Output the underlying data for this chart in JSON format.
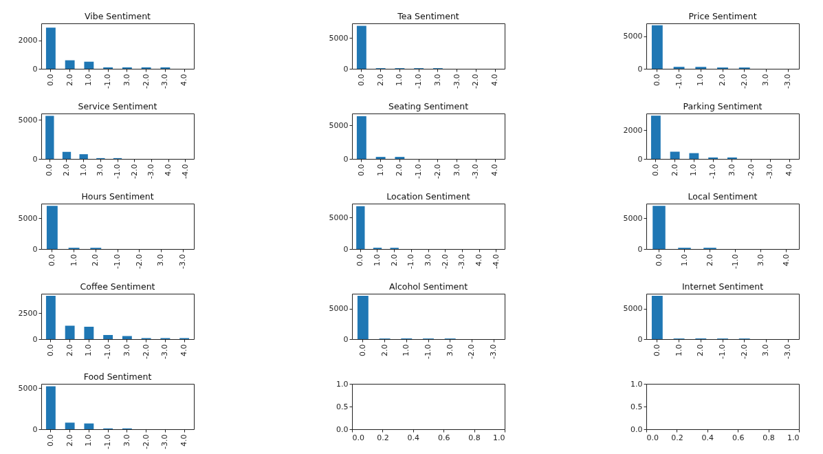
{
  "chart_data": [
    {
      "type": "bar",
      "title": "Vibe Sentiment",
      "categories": [
        "0.0",
        "2.0",
        "1.0",
        "-1.0",
        "3.0",
        "-2.0",
        "-3.0",
        "4.0"
      ],
      "values": [
        2900,
        600,
        500,
        100,
        100,
        100,
        100,
        0
      ],
      "color": "#1f77b4",
      "ylim": [
        0,
        3200
      ],
      "yticks": [
        0,
        2000
      ]
    },
    {
      "type": "bar",
      "title": "Tea Sentiment",
      "categories": [
        "0.0",
        "2.0",
        "1.0",
        "-1.0",
        "3.0",
        "-3.0",
        "-2.0",
        "4.0"
      ],
      "values": [
        7000,
        100,
        100,
        100,
        100,
        0,
        0,
        0
      ],
      "color": "#1f77b4",
      "ylim": [
        0,
        7400
      ],
      "yticks": [
        0,
        5000
      ]
    },
    {
      "type": "bar",
      "title": "Price Sentiment",
      "categories": [
        "0.0",
        "-1.0",
        "1.0",
        "2.0",
        "-2.0",
        "3.0",
        "-3.0"
      ],
      "values": [
        6700,
        300,
        300,
        200,
        200,
        0,
        0
      ],
      "color": "#1f77b4",
      "ylim": [
        0,
        7000
      ],
      "yticks": [
        0,
        5000
      ]
    },
    {
      "type": "bar",
      "title": "Service Sentiment",
      "categories": [
        "0.0",
        "2.0",
        "1.0",
        "3.0",
        "-1.0",
        "-2.0",
        "-3.0",
        "4.0",
        "-4.0"
      ],
      "values": [
        5500,
        900,
        600,
        100,
        100,
        0,
        0,
        0,
        0
      ],
      "color": "#1f77b4",
      "ylim": [
        0,
        5800
      ],
      "yticks": [
        0,
        5000
      ]
    },
    {
      "type": "bar",
      "title": "Seating Sentiment",
      "categories": [
        "0.0",
        "1.0",
        "2.0",
        "-1.0",
        "-2.0",
        "3.0",
        "-3.0",
        "4.0"
      ],
      "values": [
        6400,
        300,
        300,
        0,
        0,
        0,
        0,
        0
      ],
      "color": "#1f77b4",
      "ylim": [
        0,
        6800
      ],
      "yticks": [
        0,
        5000
      ]
    },
    {
      "type": "bar",
      "title": "Parking Sentiment",
      "categories": [
        "0.0",
        "2.0",
        "1.0",
        "-1.0",
        "3.0",
        "-2.0",
        "-3.0",
        "4.0"
      ],
      "values": [
        3000,
        500,
        400,
        100,
        100,
        0,
        0,
        0
      ],
      "color": "#1f77b4",
      "ylim": [
        0,
        3150
      ],
      "yticks": [
        0,
        2000
      ]
    },
    {
      "type": "bar",
      "title": "Hours Sentiment",
      "categories": [
        "0.0",
        "1.0",
        "2.0",
        "-1.0",
        "-2.0",
        "3.0",
        "-3.0"
      ],
      "values": [
        7000,
        200,
        200,
        0,
        0,
        0,
        0
      ],
      "color": "#1f77b4",
      "ylim": [
        0,
        7350
      ],
      "yticks": [
        0,
        5000
      ]
    },
    {
      "type": "bar",
      "title": "Location Sentiment",
      "categories": [
        "0.0",
        "1.0",
        "2.0",
        "-1.0",
        "3.0",
        "-2.0",
        "-3.0",
        "4.0",
        "-4.0"
      ],
      "values": [
        6800,
        200,
        200,
        0,
        0,
        0,
        0,
        0,
        0
      ],
      "color": "#1f77b4",
      "ylim": [
        0,
        7200
      ],
      "yticks": [
        0,
        5000
      ]
    },
    {
      "type": "bar",
      "title": "Local Sentiment",
      "categories": [
        "0.0",
        "1.0",
        "2.0",
        "-1.0",
        "3.0",
        "4.0"
      ],
      "values": [
        7000,
        200,
        200,
        0,
        0,
        0
      ],
      "color": "#1f77b4",
      "ylim": [
        0,
        7350
      ],
      "yticks": [
        0,
        5000
      ]
    },
    {
      "type": "bar",
      "title": "Coffee Sentiment",
      "categories": [
        "0.0",
        "2.0",
        "1.0",
        "-1.0",
        "3.0",
        "-2.0",
        "-3.0",
        "4.0"
      ],
      "values": [
        4200,
        1300,
        1200,
        400,
        300,
        100,
        100,
        100
      ],
      "color": "#1f77b4",
      "ylim": [
        0,
        4400
      ],
      "yticks": [
        0,
        2500
      ]
    },
    {
      "type": "bar",
      "title": "Alcohol Sentiment",
      "categories": [
        "0.0",
        "2.0",
        "1.0",
        "-1.0",
        "3.0",
        "-2.0",
        "-3.0"
      ],
      "values": [
        7100,
        100,
        100,
        100,
        100,
        0,
        0
      ],
      "color": "#1f77b4",
      "ylim": [
        0,
        7450
      ],
      "yticks": [
        0,
        5000
      ]
    },
    {
      "type": "bar",
      "title": "Internet Sentiment",
      "categories": [
        "0.0",
        "1.0",
        "2.0",
        "-1.0",
        "-2.0",
        "3.0",
        "-3.0"
      ],
      "values": [
        7100,
        100,
        100,
        100,
        100,
        0,
        0
      ],
      "color": "#1f77b4",
      "ylim": [
        0,
        7450
      ],
      "yticks": [
        0,
        5000
      ]
    },
    {
      "type": "bar",
      "title": "Food Sentiment",
      "categories": [
        "0.0",
        "2.0",
        "1.0",
        "-1.0",
        "3.0",
        "-2.0",
        "-3.0",
        "4.0"
      ],
      "values": [
        5200,
        800,
        700,
        100,
        100,
        0,
        0,
        0
      ],
      "color": "#1f77b4",
      "ylim": [
        0,
        5500
      ],
      "yticks": [
        0,
        5000
      ]
    },
    {
      "type": "scatter",
      "xlim": [
        0,
        1
      ],
      "ylim": [
        0,
        1
      ],
      "xticks": [
        {
          "value": 0,
          "label": "0.0"
        },
        {
          "value": 0.2,
          "label": "0.2"
        },
        {
          "value": 0.4,
          "label": "0.4"
        },
        {
          "value": 0.6,
          "label": "0.6"
        },
        {
          "value": 0.8,
          "label": "0.8"
        },
        {
          "value": 1,
          "label": "1.0"
        }
      ],
      "yticks": [
        {
          "value": 0,
          "label": "0.0"
        },
        {
          "value": 0.5,
          "label": "0.5"
        },
        {
          "value": 1,
          "label": "1.0"
        }
      ]
    },
    {
      "type": "scatter",
      "xlim": [
        0,
        1
      ],
      "ylim": [
        0,
        1
      ],
      "xticks": [
        {
          "value": 0,
          "label": "0.0"
        },
        {
          "value": 0.2,
          "label": "0.2"
        },
        {
          "value": 0.4,
          "label": "0.4"
        },
        {
          "value": 0.6,
          "label": "0.6"
        },
        {
          "value": 0.8,
          "label": "0.8"
        },
        {
          "value": 1,
          "label": "1.0"
        }
      ],
      "yticks": [
        {
          "value": 0,
          "label": "0.0"
        },
        {
          "value": 0.5,
          "label": "0.5"
        },
        {
          "value": 1,
          "label": "1.0"
        }
      ]
    }
  ]
}
